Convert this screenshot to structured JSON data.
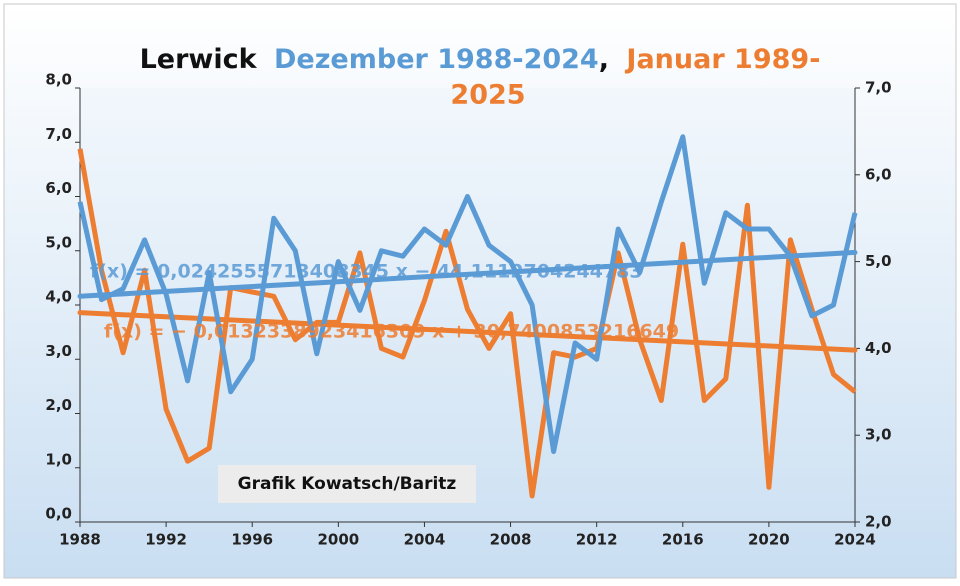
{
  "chart_data": {
    "type": "line",
    "title": [
      "Lerwick",
      "Dezember 1988-2024",
      ",",
      "Januar 1989-",
      "2025"
    ],
    "x": [
      1988,
      1989,
      1990,
      1991,
      1992,
      1993,
      1994,
      1995,
      1996,
      1997,
      1998,
      1999,
      2000,
      2001,
      2002,
      2003,
      2004,
      2005,
      2006,
      2007,
      2008,
      2009,
      2010,
      2011,
      2012,
      2013,
      2014,
      2015,
      2016,
      2017,
      2018,
      2019,
      2020,
      2021,
      2022,
      2023,
      2024
    ],
    "series": [
      {
        "name": "Dezember 1988-2024",
        "color": "#5b9bd5",
        "axis": "y",
        "values": [
          5.9,
          4.1,
          4.3,
          5.2,
          4.2,
          2.6,
          4.6,
          2.4,
          3.0,
          5.6,
          5.0,
          3.1,
          4.8,
          3.9,
          5.0,
          4.9,
          5.4,
          5.1,
          6.0,
          5.1,
          4.8,
          4.0,
          1.3,
          3.3,
          3.0,
          5.4,
          4.6,
          5.9,
          7.1,
          4.4,
          5.7,
          5.4,
          5.4,
          4.9,
          3.8,
          4.0,
          5.7
        ]
      },
      {
        "name": "Januar 1989-2025",
        "color": "#ed7d31",
        "axis": "y2",
        "values": [
          6.3,
          4.9,
          3.95,
          4.9,
          3.3,
          2.7,
          2.85,
          4.7,
          4.65,
          4.6,
          4.1,
          4.3,
          4.3,
          5.1,
          4.0,
          3.9,
          4.55,
          5.35,
          4.45,
          4.0,
          4.4,
          2.3,
          3.95,
          3.9,
          4.0,
          5.1,
          4.1,
          3.4,
          5.2,
          3.4,
          3.65,
          5.65,
          2.4,
          5.25,
          4.45,
          3.7,
          3.5
        ]
      }
    ],
    "trendline_labels": [
      "f(x) = 0,0242555713408345 x − 44,1112704244783",
      "f(x) = − 0,0132338923416309 x + 30,7400853216649"
    ],
    "annotation": "Grafik Kowatsch/Baritz",
    "xlim": [
      1988,
      2024
    ],
    "xticks": [
      1988,
      1992,
      1996,
      2000,
      2004,
      2008,
      2012,
      2016,
      2020,
      2024
    ],
    "ylim": [
      0,
      8
    ],
    "yticks": [
      {
        "value": 0,
        "label": "0,0"
      },
      {
        "value": 1,
        "label": "1,0"
      },
      {
        "value": 2,
        "label": "2,0"
      },
      {
        "value": 3,
        "label": "3,0"
      },
      {
        "value": 4,
        "label": "4,0"
      },
      {
        "value": 5,
        "label": "5,0"
      },
      {
        "value": 6,
        "label": "6,0"
      },
      {
        "value": 7,
        "label": "7,0"
      },
      {
        "value": 8,
        "label": "8,0"
      }
    ],
    "y2lim": [
      2,
      7
    ],
    "y2ticks": [
      {
        "value": 2,
        "label": "2,0"
      },
      {
        "value": 3,
        "label": "3,0"
      },
      {
        "value": 4,
        "label": "4,0"
      },
      {
        "value": 5,
        "label": "5,0"
      },
      {
        "value": 6,
        "label": "6,0"
      },
      {
        "value": 7,
        "label": "7,0"
      }
    ],
    "trendlines": true
  }
}
